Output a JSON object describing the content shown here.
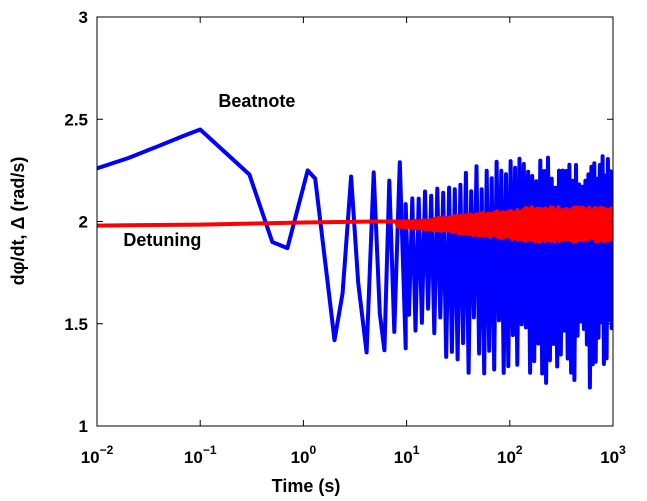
{
  "chart_data": {
    "type": "line",
    "xscale": "log",
    "xlim": [
      0.01,
      1000
    ],
    "ylim": [
      1,
      3
    ],
    "xlabel": "Time  (s)",
    "ylabel": "dφ/dt, Δ (rad/s)",
    "grid": false,
    "x_ticks": [
      {
        "base": "10",
        "exp": "−2",
        "value": 0.01
      },
      {
        "base": "10",
        "exp": "−1",
        "value": 0.1
      },
      {
        "base": "10",
        "exp": "0",
        "value": 1
      },
      {
        "base": "10",
        "exp": "1",
        "value": 10
      },
      {
        "base": "10",
        "exp": "2",
        "value": 100
      },
      {
        "base": "10",
        "exp": "3",
        "value": 1000
      }
    ],
    "y_ticks": [
      "1",
      "1.5",
      "2",
      "2.5",
      "3"
    ],
    "y_tick_values": [
      1,
      1.5,
      2,
      2.5,
      3
    ],
    "annotations": [
      {
        "text": "Beatnote",
        "x": 0.15,
        "y": 2.56
      },
      {
        "text": "Detuning",
        "x": 0.018,
        "y": 1.88
      }
    ],
    "series": [
      {
        "color": "#0000ff",
        "x": [
          0.01,
          0.02,
          0.04,
          0.07,
          0.1,
          0.3,
          0.5,
          0.7,
          1.1,
          1.3,
          1.7,
          2.0,
          2.4,
          2.9,
          3.4,
          4.1,
          4.8,
          5.5,
          6.1,
          6.8,
          7.6,
          8.6,
          9.8
        ],
        "y": [
          2.26,
          2.31,
          2.37,
          2.42,
          2.45,
          2.23,
          1.9,
          1.87,
          2.25,
          2.21,
          1.72,
          1.42,
          1.65,
          2.22,
          1.7,
          1.36,
          2.24,
          1.55,
          1.37,
          2.2,
          1.46,
          2.29,
          1.38
        ],
        "oscillation": {
          "x_start": 9.8,
          "x_end": 1000,
          "y_min": 1.18,
          "y_max": 2.32,
          "y_hi_start": 2.1,
          "y_lo_start": 1.45
        }
      },
      {
        "color": "#ff0000",
        "x": [
          0.01,
          0.1,
          1,
          5,
          10
        ],
        "y": [
          1.98,
          1.985,
          1.995,
          2.0,
          2.0
        ],
        "oscillation": {
          "x_start": 8,
          "x_end": 1000,
          "amplitude_start": 0.01,
          "amplitude_end": 0.085
        }
      }
    ]
  }
}
